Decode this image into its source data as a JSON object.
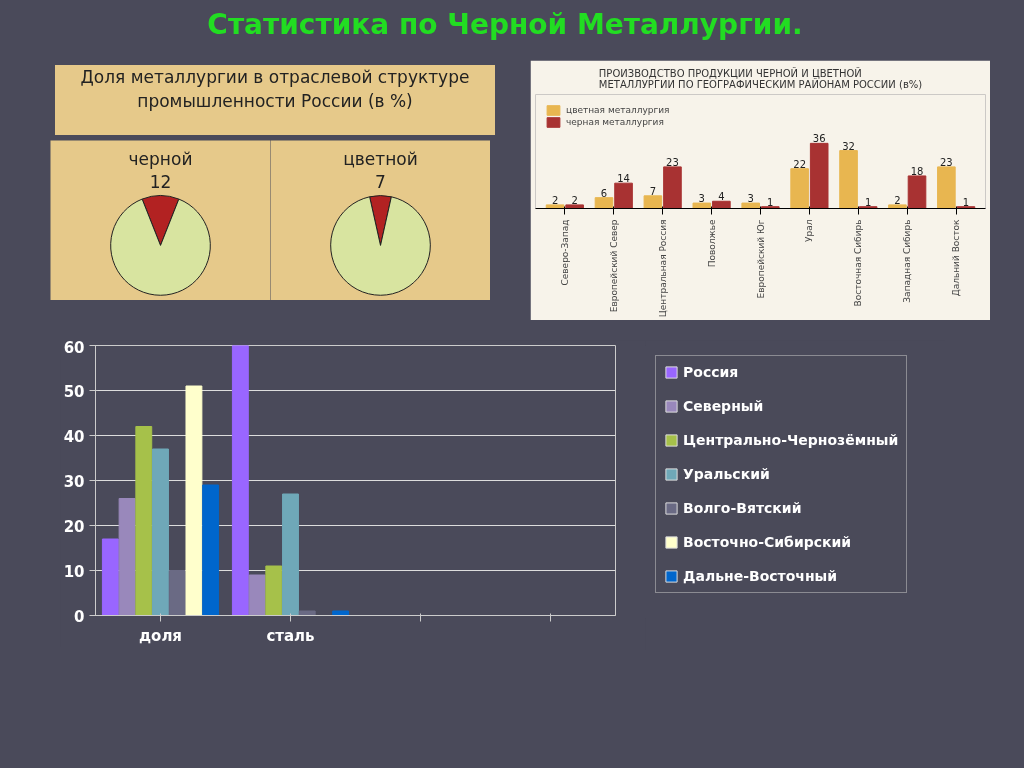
{
  "chart_data": [
    {
      "type": "pie",
      "title": "Статистика по Черной Металлургии.",
      "subtitle": "Доля металлургии в отраслевой структуре промышленности России (в %)",
      "categories": [
        "черной",
        null
      ],
      "values": [
        12,
        88
      ],
      "colors": [
        "#b22222",
        "#d8e4a0"
      ],
      "value_labels": [
        "12",
        null
      ]
    },
    {
      "type": "pie",
      "categories": [
        "цветной",
        null
      ],
      "values": [
        7,
        93
      ],
      "colors": [
        "#b22222",
        "#d8e4a0"
      ],
      "value_labels": [
        "7",
        null
      ]
    },
    {
      "type": "bar",
      "title": "ПРОИЗВОДСТВО ПРОДУКЦИИ ЧЕРНОЙ И ЦВЕТНОЙ МЕТАЛЛУРГИИ ПО ГЕОГРАФИЧЕСКИМ РАЙОНАМ РОССИИ (в%)",
      "categories": [
        "Северо-Запад",
        "Европейский Север",
        "Центральная Россия",
        "Поволжье",
        "Европейский Юг",
        "Урал",
        "Восточная Сибирь",
        "Западная Сибирь",
        "Дальний Восток"
      ],
      "series": [
        {
          "name": "цветная металлургия",
          "color": "#e8b650",
          "values": [
            2,
            6,
            7,
            3,
            3,
            22,
            32,
            2,
            23
          ]
        },
        {
          "name": "черная металлургия",
          "color": "#a83232",
          "values": [
            2,
            14,
            23,
            4,
            1,
            36,
            1,
            18,
            1
          ]
        }
      ],
      "data_labels": true,
      "legend": "top left"
    },
    {
      "type": "bar",
      "categories": [
        "доля",
        "сталь",
        null,
        null
      ],
      "series": [
        {
          "name": "Россия",
          "color": "#9966ff",
          "values": [
            17,
            60,
            null,
            null
          ]
        },
        {
          "name": "Северный",
          "color": "#9988bb",
          "values": [
            26,
            9,
            null,
            null
          ]
        },
        {
          "name": "Центрально-Чернозёмный",
          "color": "#a6c14a",
          "values": [
            42,
            11,
            null,
            null
          ]
        },
        {
          "name": "Уральский",
          "color": "#6fa8b8",
          "values": [
            37,
            27,
            null,
            null
          ]
        },
        {
          "name": "Волго-Вятский",
          "color": "#6a6a84",
          "values": [
            10,
            1,
            null,
            null
          ]
        },
        {
          "name": "Восточно-Сибирский",
          "color": "#ffffcc",
          "values": [
            51,
            0,
            null,
            null
          ]
        },
        {
          "name": "Дальне-Восточный",
          "color": "#0066cc",
          "values": [
            29,
            1,
            null,
            null
          ]
        }
      ],
      "ylim": [
        0,
        60
      ],
      "yticks": [
        0,
        10,
        20,
        30,
        40,
        50,
        60
      ],
      "grid": "y",
      "legend": "right"
    }
  ]
}
